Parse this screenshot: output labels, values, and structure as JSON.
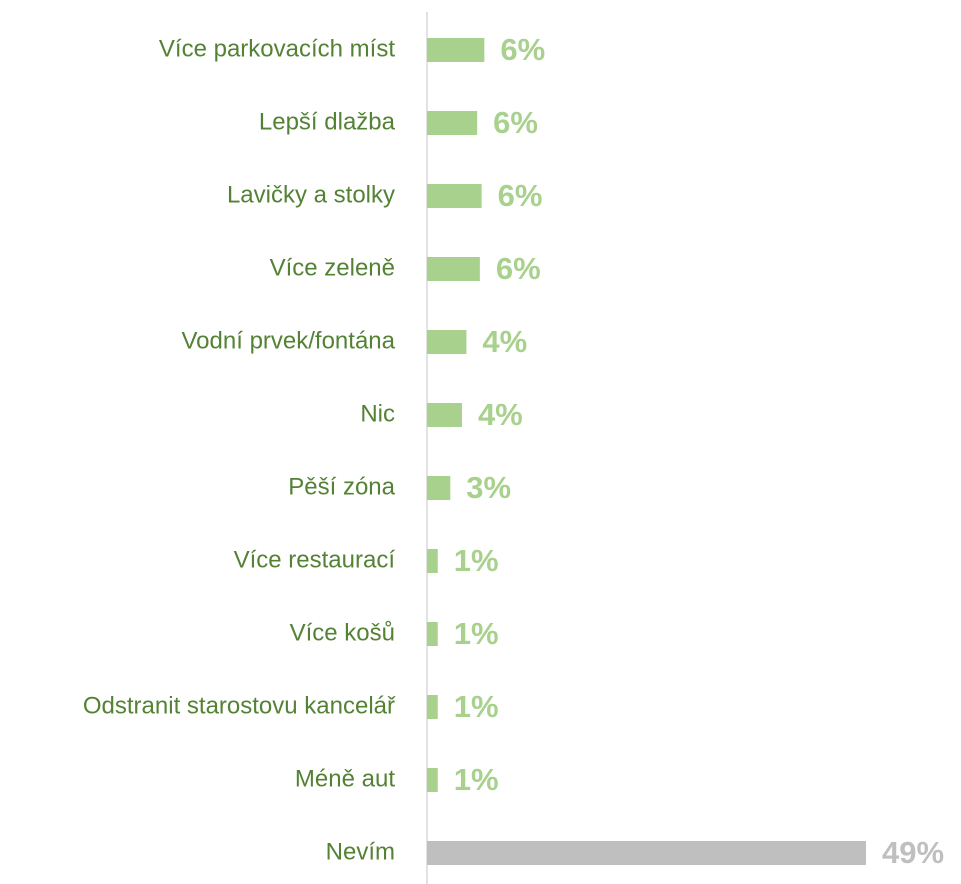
{
  "chart_data": {
    "type": "hbar",
    "categories": [
      "Více parkovacích míst",
      "Lepší dlažba",
      "Lavičky a stolky",
      "Více zeleně",
      "Vodní prvek/fontána",
      "Nic",
      "Pěší zóna",
      "Více restaurací",
      "Více košů",
      "Odstranit starostovu kancelář",
      "Méně aut",
      "Nevím"
    ],
    "values": [
      6.4,
      5.6,
      6.1,
      5.9,
      4.4,
      3.9,
      2.6,
      1.2,
      1.2,
      1.2,
      1.2,
      49
    ],
    "value_labels": [
      "6%",
      "6%",
      "6%",
      "6%",
      "4%",
      "4%",
      "3%",
      "1%",
      "1%",
      "1%",
      "1%",
      "49%"
    ],
    "colors": [
      "#a9d18e",
      "#a9d18e",
      "#a9d18e",
      "#a9d18e",
      "#a9d18e",
      "#a9d18e",
      "#a9d18e",
      "#a9d18e",
      "#a9d18e",
      "#a9d18e",
      "#a9d18e",
      "#bfbfbf"
    ],
    "xlim": [
      0,
      49
    ]
  }
}
